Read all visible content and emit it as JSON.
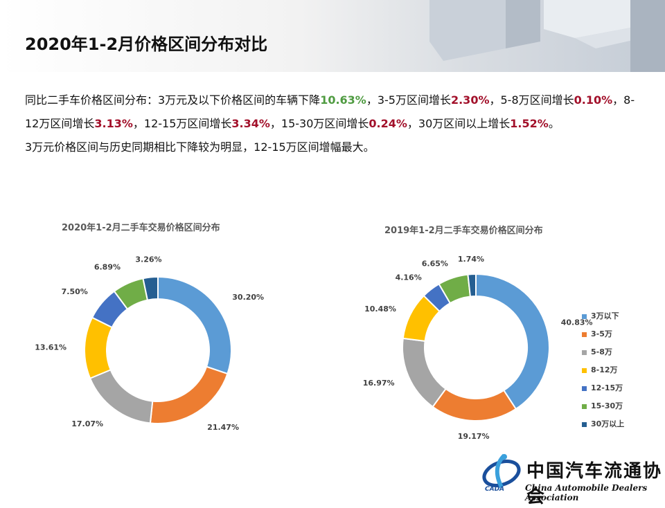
{
  "title": "2020年1-2月价格区间分布对比",
  "paragraph": {
    "p1_a": "同比二手车价格区间分布：3万元及以下价格区间的车辆下降",
    "p1_v1": "10.63%",
    "p1_b": "，3-5万区间增长",
    "p1_v2": "2.30%",
    "p1_c": "，5-8万区间增长",
    "p1_v3": "0.10%",
    "p1_d": "，8-12万区间增长",
    "p1_v4": "3.13%",
    "p1_e": "，12-15万区间增长",
    "p1_v5": "3.34%",
    "p1_f": "，15-30万区间增长",
    "p1_v6": "0.24%",
    "p1_g": "，30万区间以上增长",
    "p1_v7": "1.52%",
    "p1_h": "。",
    "p2": "3万元价格区间与历史同期相比下降较为明显，12-15万区间增幅最大。"
  },
  "chart_data": [
    {
      "type": "pie",
      "title": "2020年1-2月二手车交易价格区间分布",
      "categories": [
        "3万以下",
        "3-5万",
        "5-8万",
        "8-12万",
        "12-15万",
        "15-30万",
        "30万以上"
      ],
      "values": [
        30.2,
        21.47,
        17.07,
        13.61,
        7.5,
        6.89,
        3.26
      ],
      "labels": [
        "30.20%",
        "21.47%",
        "17.07%",
        "13.61%",
        "7.50%",
        "6.89%",
        "3.26%"
      ],
      "colors": [
        "#5b9bd5",
        "#ed7d31",
        "#a5a5a5",
        "#ffc000",
        "#4472c4",
        "#70ad47",
        "#255e91"
      ]
    },
    {
      "type": "pie",
      "title": "2019年1-2月二手车交易价格区间分布",
      "categories": [
        "3万以下",
        "3-5万",
        "5-8万",
        "8-12万",
        "12-15万",
        "15-30万",
        "30万以上"
      ],
      "values": [
        40.83,
        19.17,
        16.97,
        10.48,
        4.16,
        6.65,
        1.74
      ],
      "labels": [
        "40.83%",
        "19.17%",
        "16.97%",
        "10.48%",
        "4.16%",
        "6.65%",
        "1.74%"
      ],
      "colors": [
        "#5b9bd5",
        "#ed7d31",
        "#a5a5a5",
        "#ffc000",
        "#4472c4",
        "#70ad47",
        "#255e91"
      ],
      "legend_position": "right"
    }
  ],
  "legend": {
    "items": [
      "3万以下",
      "3-5万",
      "5-8万",
      "8-12万",
      "12-15万",
      "15-30万",
      "30万以上"
    ],
    "colors": [
      "#5b9bd5",
      "#ed7d31",
      "#a5a5a5",
      "#ffc000",
      "#4472c4",
      "#70ad47",
      "#255e91"
    ]
  },
  "logo": {
    "name_cn": "中国汽车流通协会",
    "name_en": "China Automobile Dealers Association",
    "abbr": "CADA"
  }
}
